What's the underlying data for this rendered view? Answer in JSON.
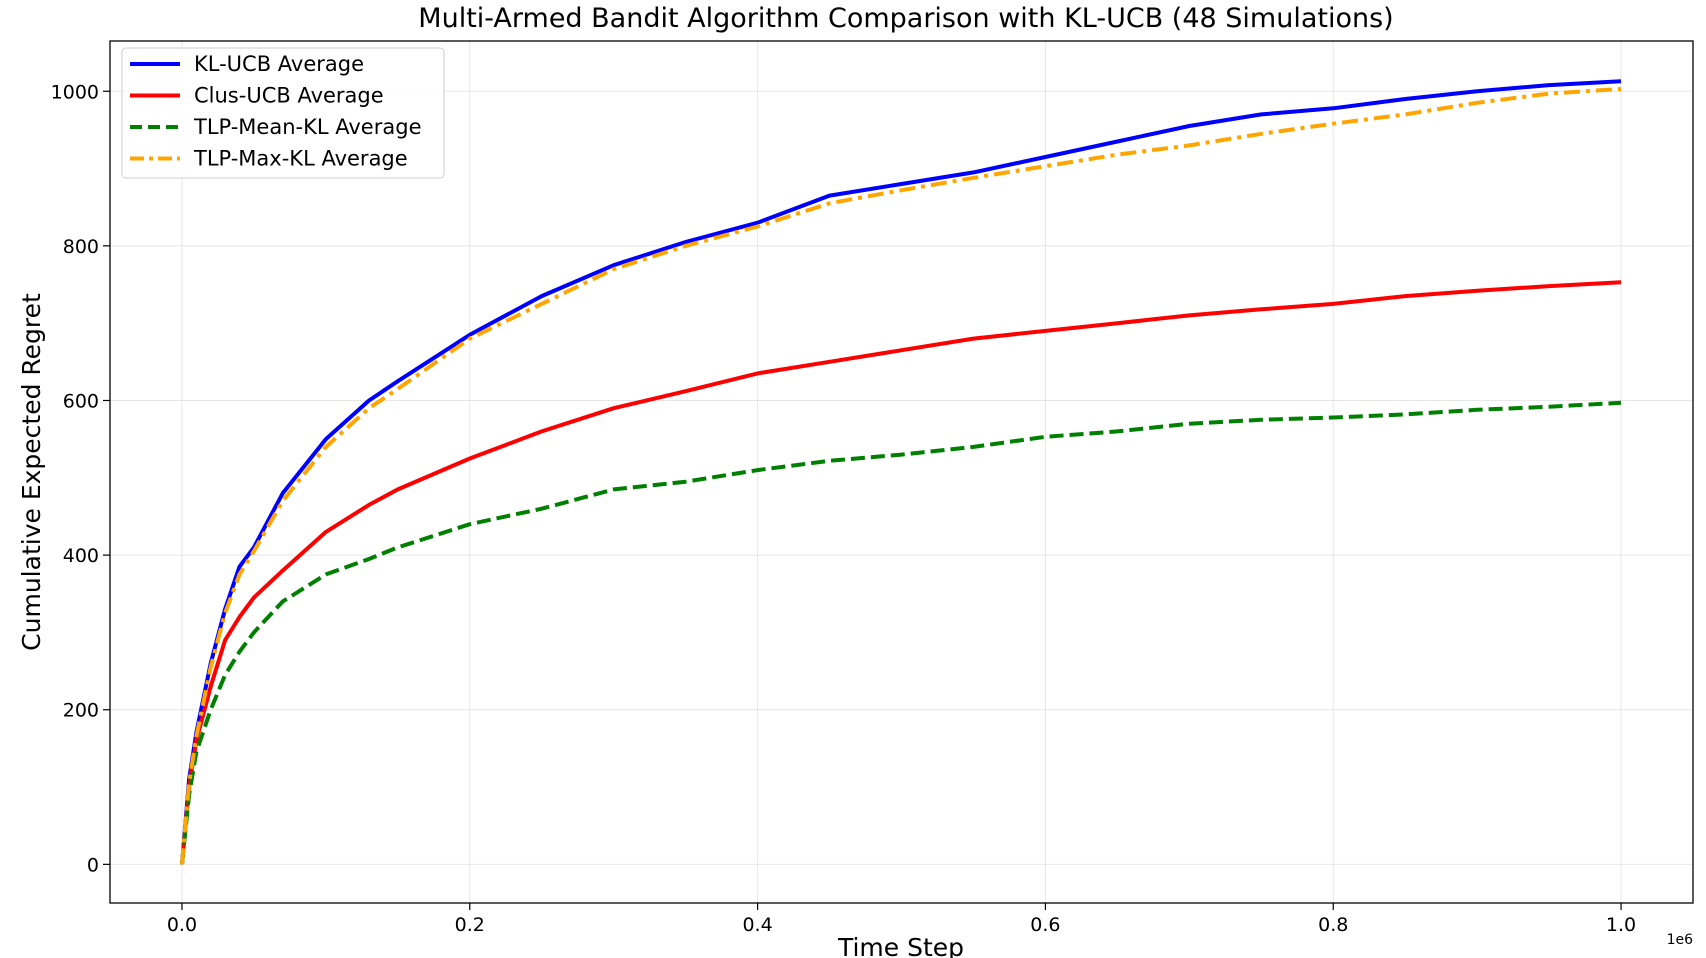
{
  "chart_data": {
    "type": "line",
    "title": "Multi-Armed Bandit Algorithm Comparison with KL-UCB (48 Simulations)",
    "xlabel": "Time Step",
    "ylabel": "Cumulative Expected Regret",
    "x_offset_label": "1e6",
    "xlim": [
      -0.05,
      1.05
    ],
    "ylim": [
      -50,
      1065
    ],
    "x_ticks": [
      0.0,
      0.2,
      0.4,
      0.6,
      0.8,
      1.0
    ],
    "x_tick_labels": [
      "0.0",
      "0.2",
      "0.4",
      "0.6",
      "0.8",
      "1.0"
    ],
    "y_ticks": [
      0,
      200,
      400,
      600,
      800,
      1000
    ],
    "y_tick_labels": [
      "0",
      "200",
      "400",
      "600",
      "800",
      "1000"
    ],
    "grid": true,
    "legend_position": "top-left",
    "series": [
      {
        "name": "KL-UCB Average",
        "color": "#0000ff",
        "dash": "solid",
        "x": [
          0,
          0.005,
          0.01,
          0.02,
          0.03,
          0.04,
          0.05,
          0.07,
          0.1,
          0.13,
          0.15,
          0.2,
          0.25,
          0.3,
          0.35,
          0.4,
          0.45,
          0.5,
          0.55,
          0.6,
          0.65,
          0.7,
          0.75,
          0.8,
          0.85,
          0.9,
          0.95,
          1.0
        ],
        "y": [
          0,
          110,
          170,
          260,
          330,
          385,
          410,
          480,
          550,
          600,
          625,
          685,
          735,
          775,
          805,
          830,
          865,
          880,
          895,
          915,
          935,
          955,
          970,
          978,
          990,
          1000,
          1008,
          1013
        ]
      },
      {
        "name": "Clus-UCB Average",
        "color": "#ff0000",
        "dash": "solid",
        "x": [
          0,
          0.005,
          0.01,
          0.02,
          0.03,
          0.04,
          0.05,
          0.07,
          0.1,
          0.13,
          0.15,
          0.2,
          0.25,
          0.3,
          0.35,
          0.4,
          0.45,
          0.5,
          0.55,
          0.6,
          0.65,
          0.7,
          0.75,
          0.8,
          0.85,
          0.9,
          0.95,
          1.0
        ],
        "y": [
          0,
          100,
          160,
          230,
          290,
          320,
          345,
          380,
          430,
          465,
          485,
          525,
          560,
          590,
          612,
          635,
          650,
          665,
          680,
          690,
          700,
          710,
          718,
          725,
          735,
          742,
          748,
          753
        ]
      },
      {
        "name": "TLP-Mean-KL Average",
        "color": "#008000",
        "dash": "dashed",
        "x": [
          0,
          0.005,
          0.01,
          0.02,
          0.03,
          0.04,
          0.05,
          0.07,
          0.1,
          0.13,
          0.15,
          0.2,
          0.25,
          0.3,
          0.35,
          0.4,
          0.45,
          0.5,
          0.55,
          0.6,
          0.65,
          0.7,
          0.75,
          0.8,
          0.85,
          0.9,
          0.95,
          1.0
        ],
        "y": [
          0,
          90,
          145,
          200,
          245,
          275,
          300,
          340,
          375,
          395,
          410,
          440,
          460,
          485,
          495,
          510,
          522,
          530,
          540,
          553,
          560,
          570,
          575,
          578,
          582,
          588,
          592,
          597
        ]
      },
      {
        "name": "TLP-Max-KL Average",
        "color": "#ffa500",
        "dash": "dashdot",
        "x": [
          0,
          0.005,
          0.01,
          0.02,
          0.03,
          0.04,
          0.05,
          0.07,
          0.1,
          0.13,
          0.15,
          0.2,
          0.25,
          0.3,
          0.35,
          0.4,
          0.45,
          0.5,
          0.55,
          0.6,
          0.65,
          0.7,
          0.75,
          0.8,
          0.85,
          0.9,
          0.95,
          1.0
        ],
        "y": [
          0,
          105,
          165,
          255,
          325,
          375,
          405,
          470,
          540,
          590,
          615,
          680,
          725,
          770,
          800,
          825,
          855,
          872,
          888,
          903,
          918,
          930,
          945,
          958,
          970,
          985,
          997,
          1003
        ]
      }
    ]
  }
}
